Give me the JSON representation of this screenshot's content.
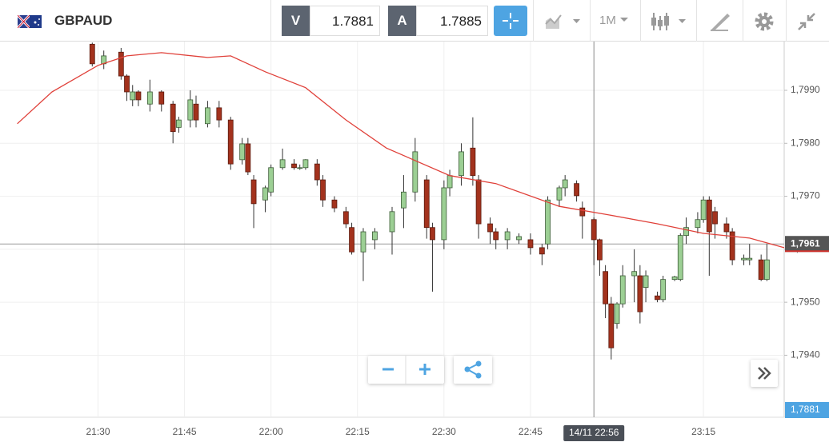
{
  "toolbar": {
    "symbol": "GBPAUD",
    "bid_label": "V",
    "bid": "1.7881",
    "ask_label": "A",
    "ask": "1.7885",
    "timeframe": "1M"
  },
  "chart_data": {
    "type": "candlestick",
    "xlim": [
      "21:13",
      "23:29"
    ],
    "xticks": [
      "21:30",
      "21:45",
      "22:00",
      "22:15",
      "22:30",
      "22:45",
      "23:15"
    ],
    "ylim": [
      1.79283,
      1.79992
    ],
    "yticks": [
      {
        "value": 1.799,
        "label": "1,7990"
      },
      {
        "value": 1.798,
        "label": "1,7980"
      },
      {
        "value": 1.797,
        "label": "1,7970"
      },
      {
        "value": 1.796,
        "label": "1,7960"
      },
      {
        "value": 1.795,
        "label": "1,7950"
      },
      {
        "value": 1.794,
        "label": "1,7940"
      }
    ],
    "grid": true,
    "up_color": "#9ccf94",
    "down_color": "#a3321d",
    "candles": {
      "x": [
        "21:29",
        "21:31",
        "21:34",
        "21:35",
        "21:36",
        "21:37",
        "21:39",
        "21:41",
        "21:43",
        "21:44",
        "21:46",
        "21:47",
        "21:49",
        "21:51",
        "21:53",
        "21:55",
        "21:56",
        "21:57",
        "21:59",
        "22:00",
        "22:02",
        "22:04",
        "22:05",
        "22:06",
        "22:08",
        "22:09",
        "22:11",
        "22:13",
        "22:14",
        "22:16",
        "22:18",
        "22:21",
        "22:23",
        "22:25",
        "22:27",
        "22:28",
        "22:30",
        "22:31",
        "22:33",
        "22:35",
        "22:36",
        "22:38",
        "22:39",
        "22:41",
        "22:43",
        "22:45",
        "22:47",
        "22:48",
        "22:50",
        "22:51",
        "22:53",
        "22:54",
        "22:56",
        "22:57",
        "22:58",
        "22:59",
        "23:00",
        "23:01",
        "23:03",
        "23:04",
        "23:05",
        "23:07",
        "23:08",
        "23:10",
        "23:11",
        "23:12",
        "23:14",
        "23:15",
        "23:16",
        "23:17",
        "23:19",
        "23:20",
        "23:22",
        "23:23",
        "23:25",
        "23:26"
      ],
      "open": [
        1.79987,
        1.7995,
        1.79972,
        1.79927,
        1.79882,
        1.79897,
        1.79874,
        1.79897,
        1.79874,
        1.7983,
        1.79844,
        1.79874,
        1.79837,
        1.79867,
        1.79844,
        1.79769,
        1.79799,
        1.79731,
        1.79693,
        1.79708,
        1.79754,
        1.79761,
        1.79754,
        1.79754,
        1.79761,
        1.79731,
        1.79693,
        1.79671,
        1.79641,
        1.79595,
        1.79618,
        1.79633,
        1.79678,
        1.79708,
        1.79731,
        1.79641,
        1.79618,
        1.79716,
        1.79739,
        1.79791,
        1.79731,
        1.79648,
        1.79633,
        1.79618,
        1.79618,
        1.79618,
        1.79603,
        1.7961,
        1.79693,
        1.79716,
        1.79724,
        1.79678,
        1.79656,
        1.79618,
        1.79558,
        1.79497,
        1.7946,
        1.79497,
        1.7955,
        1.7955,
        1.79528,
        1.79512,
        1.79505,
        1.79543,
        1.79543,
        1.79626,
        1.79641,
        1.79656,
        1.79693,
        1.79671,
        1.79648,
        1.79633,
        1.7958,
        1.7958,
        1.7958,
        1.79543
      ],
      "high": [
        1.7999,
        1.79975,
        1.7998,
        1.7993,
        1.7991,
        1.799,
        1.7992,
        1.799,
        1.7988,
        1.7985,
        1.799,
        1.7989,
        1.7988,
        1.7988,
        1.7985,
        1.7981,
        1.7981,
        1.7974,
        1.7972,
        1.7976,
        1.7979,
        1.7977,
        1.7976,
        1.7977,
        1.7977,
        1.7974,
        1.797,
        1.7968,
        1.7965,
        1.7964,
        1.7964,
        1.7968,
        1.7974,
        1.7981,
        1.7974,
        1.7965,
        1.7973,
        1.7975,
        1.798,
        1.79849,
        1.7974,
        1.7966,
        1.7964,
        1.7964,
        1.7963,
        1.7963,
        1.7961,
        1.797,
        1.7972,
        1.7974,
        1.7973,
        1.7969,
        1.7966,
        1.7962,
        1.7957,
        1.7951,
        1.795,
        1.7957,
        1.796,
        1.7957,
        1.7956,
        1.7952,
        1.7955,
        1.7955,
        1.7963,
        1.7966,
        1.7967,
        1.797,
        1.797,
        1.7968,
        1.7966,
        1.7964,
        1.7959,
        1.7961,
        1.7959,
        1.7961
      ],
      "low": [
        1.79945,
        1.7994,
        1.7992,
        1.7988,
        1.7987,
        1.7987,
        1.7986,
        1.7986,
        1.798,
        1.7982,
        1.7983,
        1.7983,
        1.7983,
        1.7983,
        1.7975,
        1.7976,
        1.7974,
        1.7964,
        1.7967,
        1.797,
        1.7975,
        1.7975,
        1.7975,
        1.7975,
        1.7972,
        1.7968,
        1.7967,
        1.7964,
        1.7959,
        1.7954,
        1.796,
        1.7959,
        1.7964,
        1.7969,
        1.7962,
        1.7952,
        1.796,
        1.797,
        1.7972,
        1.7972,
        1.7962,
        1.7961,
        1.796,
        1.796,
        1.7961,
        1.7959,
        1.7957,
        1.796,
        1.7968,
        1.797,
        1.7969,
        1.7962,
        1.7957,
        1.7955,
        1.7947,
        1.79392,
        1.7945,
        1.7949,
        1.795,
        1.7946,
        1.795,
        1.795,
        1.795,
        1.7954,
        1.7954,
        1.7961,
        1.7963,
        1.7965,
        1.7955,
        1.7962,
        1.7962,
        1.7957,
        1.7957,
        1.7957,
        1.7954,
        1.7954
      ],
      "close": [
        1.7995,
        1.79965,
        1.79927,
        1.79897,
        1.79897,
        1.79882,
        1.79897,
        1.79874,
        1.79822,
        1.79844,
        1.79882,
        1.79844,
        1.79867,
        1.79844,
        1.79761,
        1.79799,
        1.79746,
        1.79686,
        1.79716,
        1.79754,
        1.79769,
        1.79754,
        1.79754,
        1.79769,
        1.79731,
        1.79693,
        1.79678,
        1.79648,
        1.79595,
        1.79633,
        1.79633,
        1.79671,
        1.79708,
        1.79784,
        1.79641,
        1.79618,
        1.79716,
        1.79739,
        1.79784,
        1.79739,
        1.79648,
        1.79633,
        1.79618,
        1.79633,
        1.79624,
        1.79603,
        1.79591,
        1.79693,
        1.79716,
        1.79731,
        1.79701,
        1.79663,
        1.79618,
        1.7958,
        1.79497,
        1.79414,
        1.79497,
        1.7955,
        1.79558,
        1.79482,
        1.7955,
        1.79505,
        1.79543,
        1.79548,
        1.79626,
        1.79641,
        1.79656,
        1.79693,
        1.79633,
        1.79648,
        1.79633,
        1.7958,
        1.79583,
        1.79583,
        1.79543,
        1.7958
      ]
    },
    "lines": [
      {
        "color": "#e0413a",
        "x": [
          "21:16",
          "21:22",
          "21:30",
          "21:35",
          "21:41",
          "21:49",
          "21:53",
          "21:59",
          "22:06",
          "22:13",
          "22:20",
          "22:31",
          "22:39",
          "22:50",
          "22:58",
          "23:07",
          "23:15",
          "23:23",
          "23:29"
        ],
        "values": [
          1.79837,
          1.79897,
          1.79947,
          1.79965,
          1.79971,
          1.79962,
          1.79965,
          1.79935,
          1.79905,
          1.79844,
          1.79791,
          1.79739,
          1.79724,
          1.79681,
          1.79666,
          1.79648,
          1.7963,
          1.79621,
          1.79603
        ]
      }
    ],
    "last_price": {
      "value": 1.7961,
      "label": "1,7961"
    },
    "bid_marker": "1,7881",
    "crosshair": "14/11 22:56"
  }
}
